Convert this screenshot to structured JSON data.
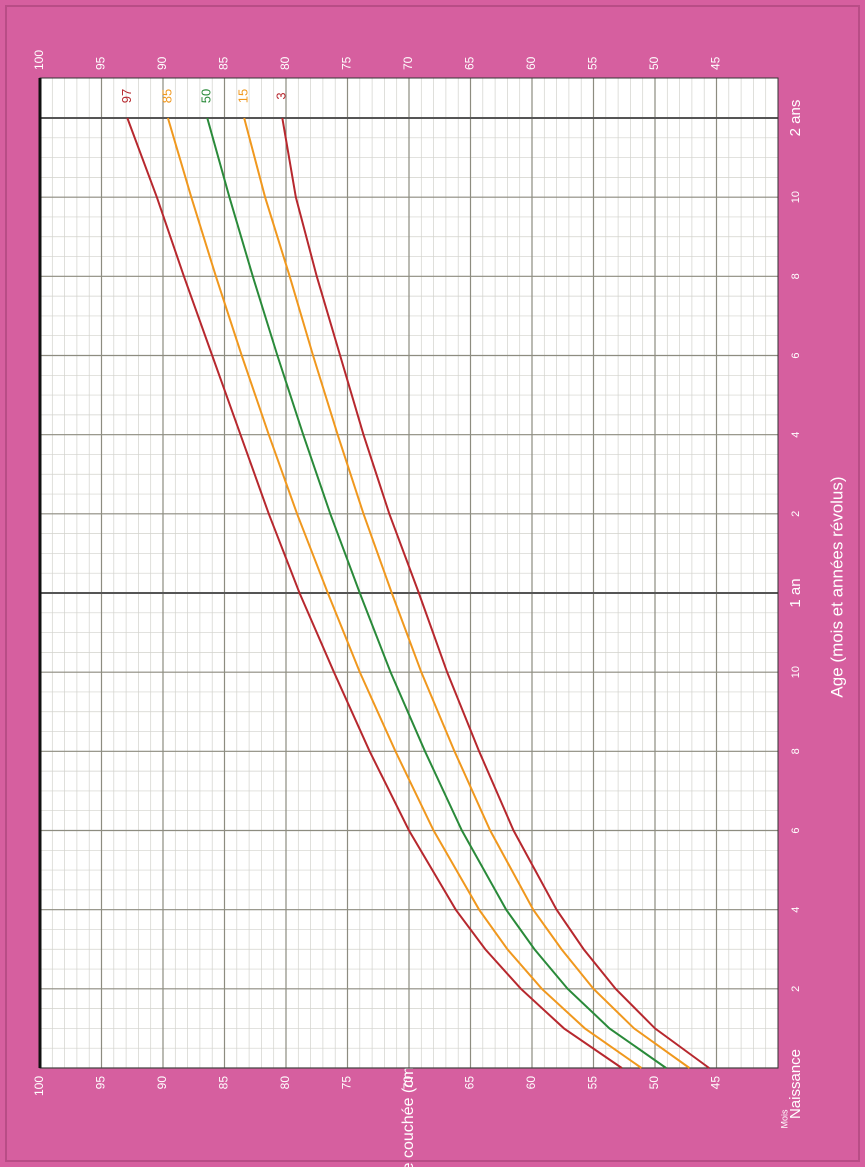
{
  "chart_data": {
    "type": "line",
    "x_label": "Age (mois et années révolus)",
    "x_sublabel": "Mois",
    "y_label": "Taille couchée (cm)",
    "x": [
      0,
      1,
      2,
      3,
      4,
      6,
      8,
      10,
      12,
      14,
      16,
      18,
      20,
      22,
      24
    ],
    "series": [
      {
        "name": "97",
        "color": "#b7282e",
        "values": [
          52.7,
          57.4,
          60.9,
          63.8,
          66.2,
          70.0,
          73.2,
          76.1,
          78.9,
          81.4,
          83.7,
          86.0,
          88.3,
          90.5,
          92.9
        ]
      },
      {
        "name": "85",
        "color": "#f0981e",
        "values": [
          51.1,
          55.7,
          59.2,
          62.0,
          64.3,
          68.0,
          71.1,
          74.0,
          76.6,
          79.1,
          81.4,
          83.6,
          85.7,
          87.7,
          89.6
        ]
      },
      {
        "name": "50",
        "color": "#2a8a3a",
        "values": [
          49.1,
          53.7,
          57.1,
          59.8,
          62.1,
          65.7,
          68.7,
          71.5,
          74.0,
          76.4,
          78.6,
          80.7,
          82.7,
          84.6,
          86.4
        ]
      },
      {
        "name": "15",
        "color": "#f0981e",
        "values": [
          47.2,
          51.7,
          55.0,
          57.6,
          59.9,
          63.4,
          66.3,
          69.0,
          71.4,
          73.7,
          75.8,
          77.8,
          79.7,
          81.7,
          83.4
        ]
      },
      {
        "name": "3",
        "color": "#b7282e",
        "values": [
          45.6,
          50.0,
          53.2,
          55.8,
          58.0,
          61.5,
          64.3,
          66.9,
          69.2,
          71.6,
          73.7,
          75.6,
          77.5,
          79.2,
          80.3
        ]
      }
    ],
    "xlim": [
      0,
      24
    ],
    "xticks": [
      {
        "value": 0,
        "label": "Naissance"
      },
      2,
      4,
      6,
      8,
      10,
      {
        "value": 12,
        "label": "1 an"
      },
      {
        "value": 14,
        "label": "2"
      },
      {
        "value": 16,
        "label": "4"
      },
      {
        "value": 18,
        "label": "6"
      },
      {
        "value": 20,
        "label": "8"
      },
      {
        "value": 22,
        "label": "10"
      },
      {
        "value": 24,
        "label": "2 ans"
      }
    ],
    "ylim": [
      40,
      100
    ],
    "yticks": [
      45,
      50,
      55,
      60,
      65,
      70,
      75,
      80,
      85,
      90,
      95,
      100
    ],
    "grid": true
  }
}
